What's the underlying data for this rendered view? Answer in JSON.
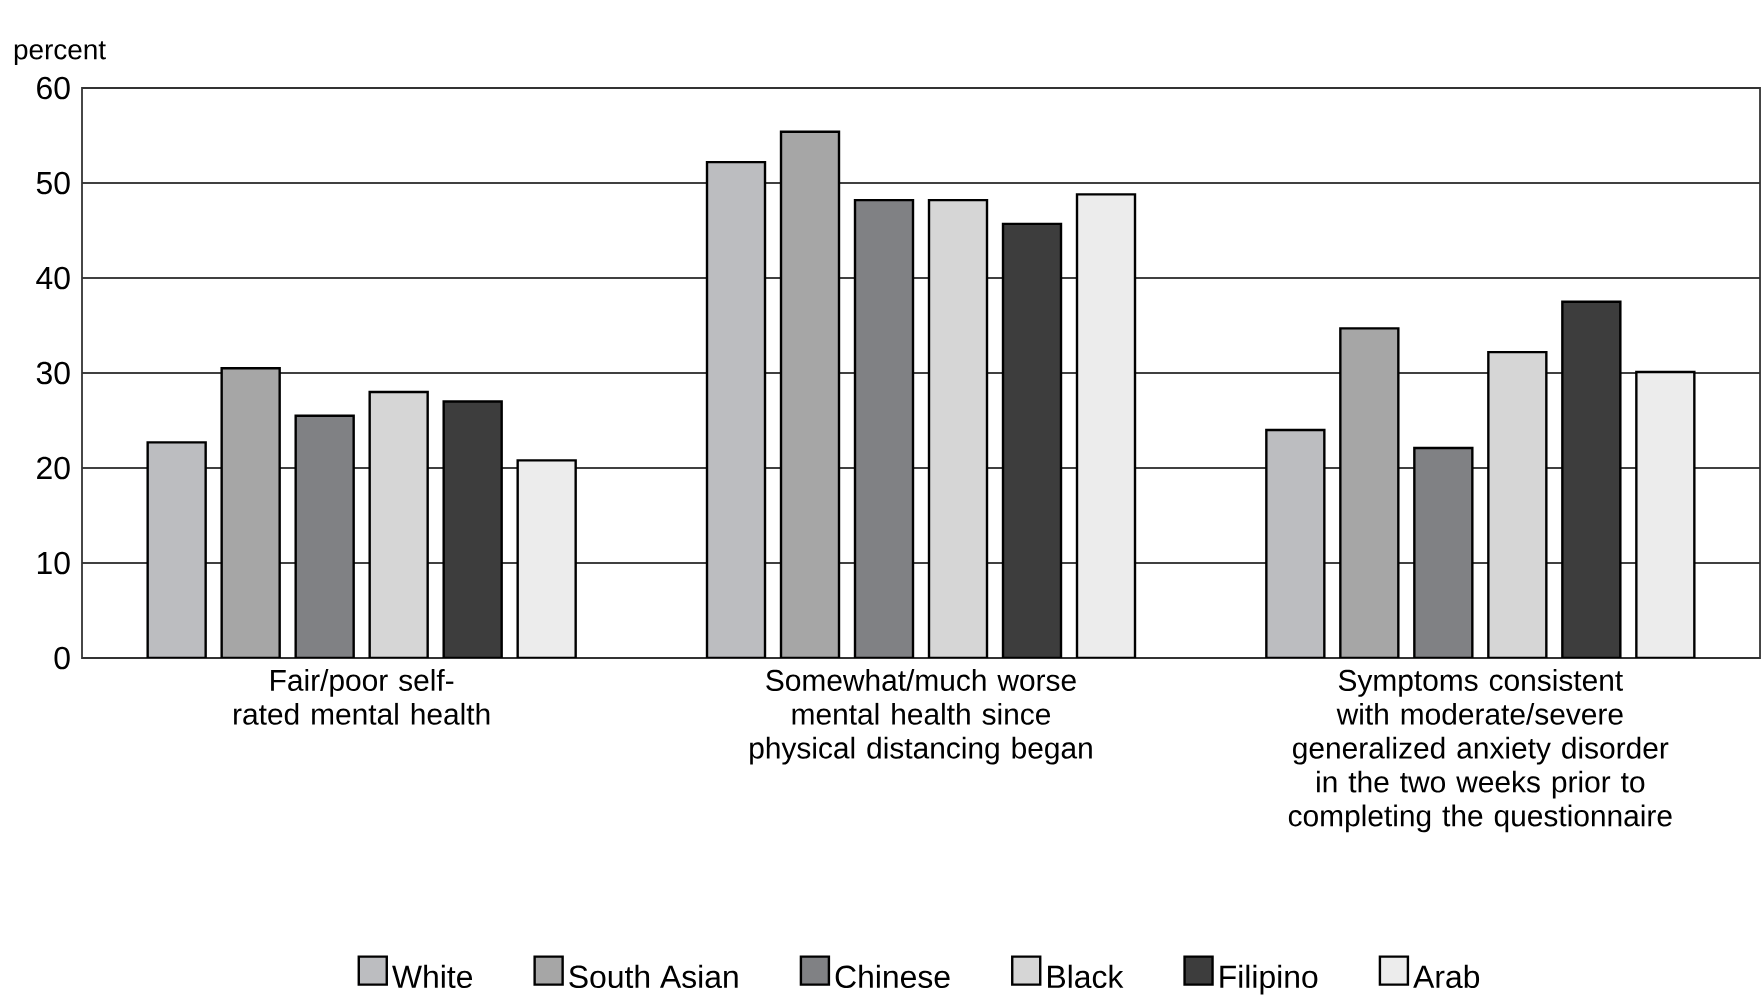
{
  "chart_data": {
    "type": "bar",
    "ylabel": "percent",
    "categories": [
      "Fair/poor self-rated mental health",
      "Somewhat/much worse mental health since physical distancing began",
      "Symptoms consistent with moderate/severe generalized anxiety disorder in the two weeks prior to completing the questionnaire"
    ],
    "series": [
      {
        "name": "White",
        "color": "#bcbdc0",
        "values": [
          22.7,
          52.2,
          24.0
        ]
      },
      {
        "name": "South Asian",
        "color": "#a6a6a6",
        "values": [
          30.5,
          55.4,
          34.7
        ]
      },
      {
        "name": "Chinese",
        "color": "#808184",
        "values": [
          25.5,
          48.2,
          22.1
        ]
      },
      {
        "name": "Black",
        "color": "#d6d6d6",
        "values": [
          28.0,
          48.2,
          32.2
        ]
      },
      {
        "name": "Filipino",
        "color": "#3d3d3d",
        "values": [
          27.0,
          45.7,
          37.5
        ]
      },
      {
        "name": "Arab",
        "color": "#ececec",
        "values": [
          20.8,
          48.8,
          30.1
        ]
      }
    ],
    "ylim": [
      0,
      60
    ],
    "yticks": [
      0,
      10,
      20,
      30,
      40,
      50,
      60
    ],
    "grid": "y",
    "legend": "bottom"
  }
}
